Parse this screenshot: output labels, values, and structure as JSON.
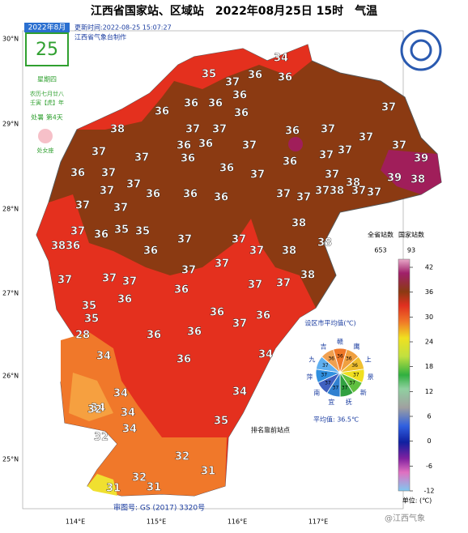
{
  "header": {
    "title": "江西省国家站、区域站　2022年08月25日 15时　气温",
    "update_time": "更新时间:2022-08-25 15:07:27",
    "producer": "江西省气象台制作"
  },
  "calendar": {
    "month": "2022年8月",
    "day": "25",
    "weekday": "星期四",
    "lunar": "农历七月廿八",
    "ganzhi": "壬寅【虎】年",
    "solar_term": "处暑 第4天",
    "zodiac": "处女座"
  },
  "lat_labels": [
    "30°N",
    "29°N",
    "28°N",
    "27°N",
    "26°N",
    "25°N"
  ],
  "lon_labels": [
    "114°E",
    "115°E",
    "116°E",
    "117°E"
  ],
  "temperatures": [
    34,
    35,
    37,
    36,
    36,
    36,
    36,
    36,
    36,
    36,
    37,
    38,
    37,
    37,
    36,
    37,
    37,
    36,
    36,
    37,
    37,
    37,
    37,
    37,
    36,
    36,
    36,
    37,
    37,
    36,
    37,
    37,
    37,
    37,
    39,
    39,
    37,
    38,
    38,
    37,
    36,
    36,
    36,
    37,
    37,
    38,
    37,
    37,
    37,
    37,
    36,
    35,
    35,
    37,
    37,
    38,
    38,
    36,
    38,
    36,
    38,
    37,
    37,
    37,
    38,
    37,
    37,
    37,
    37,
    35,
    36,
    36,
    37,
    36,
    35,
    36,
    28,
    37,
    36,
    36,
    34,
    34,
    36,
    34,
    34,
    34,
    32,
    34,
    34,
    32,
    35,
    32,
    31,
    31,
    31,
    32
  ],
  "legend": {
    "station_total_label": "全省站数",
    "station_total": 653,
    "national_label": "国家站数",
    "national": 93,
    "ticks": [
      42,
      36,
      30,
      24,
      18,
      12,
      6,
      0,
      -6,
      -12
    ],
    "unit": "单位: (℃)"
  },
  "pie": {
    "title": "设区市平均值(℃)",
    "cities": [
      "赣",
      "鹰",
      "上",
      "景",
      "新",
      "抚",
      "宜",
      "南",
      "萍",
      "九",
      "吉"
    ],
    "values": [
      36,
      36,
      36,
      37,
      37,
      37,
      37,
      37,
      37,
      37,
      36
    ],
    "average": "平均值: 36.5℃"
  },
  "notes": {
    "rank": "排名靠前站点",
    "map_no": "审图号: GS (2017) 3320号",
    "watermark": "@江西气象"
  }
}
